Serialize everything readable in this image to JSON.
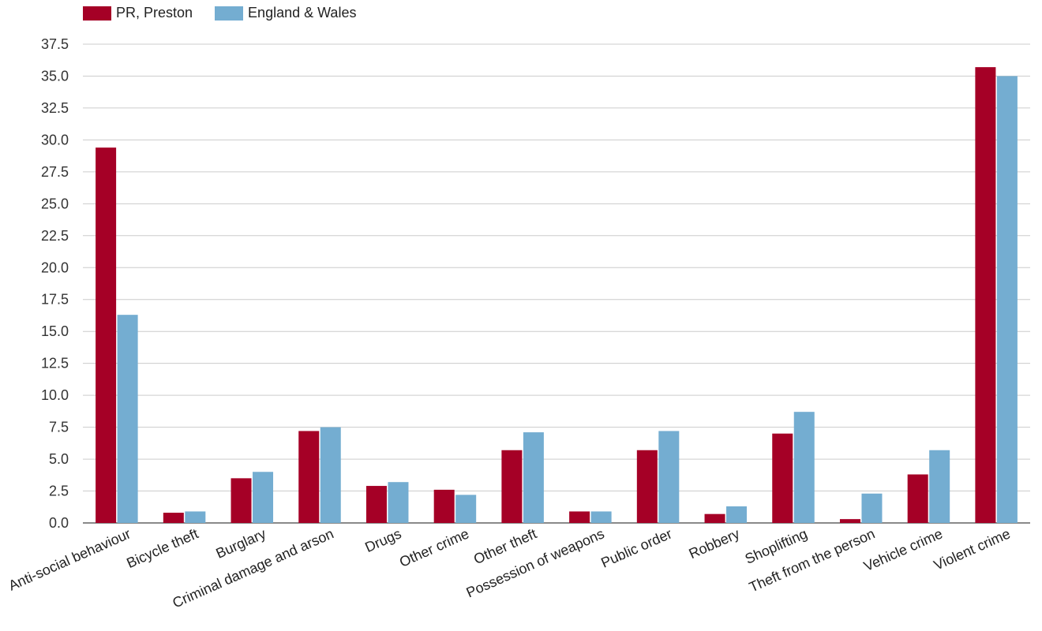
{
  "chart_data": {
    "type": "bar",
    "categories": [
      "Anti-social behaviour",
      "Bicycle theft",
      "Burglary",
      "Criminal damage and arson",
      "Drugs",
      "Other crime",
      "Other theft",
      "Possession of weapons",
      "Public order",
      "Robbery",
      "Shoplifting",
      "Theft from the person",
      "Vehicle crime",
      "Violent crime"
    ],
    "series": [
      {
        "name": "PR, Preston",
        "color": "#a50026",
        "values": [
          29.4,
          0.8,
          3.5,
          7.2,
          2.9,
          2.6,
          5.7,
          0.9,
          5.7,
          0.7,
          7.0,
          0.3,
          3.8,
          35.7
        ]
      },
      {
        "name": "England & Wales",
        "color": "#74add1",
        "values": [
          16.3,
          0.9,
          4.0,
          7.5,
          3.2,
          2.2,
          7.1,
          0.9,
          7.2,
          1.3,
          8.7,
          2.3,
          5.7,
          35.0
        ]
      }
    ],
    "y_ticks": [
      "0.0",
      "2.5",
      "5.0",
      "7.5",
      "10.0",
      "12.5",
      "15.0",
      "17.5",
      "20.0",
      "22.5",
      "25.0",
      "27.5",
      "30.0",
      "32.5",
      "35.0",
      "37.5"
    ],
    "ylim": [
      0,
      37.5
    ],
    "grid": true,
    "legend_position": "top-left",
    "title": "",
    "xlabel": "",
    "ylabel": ""
  }
}
